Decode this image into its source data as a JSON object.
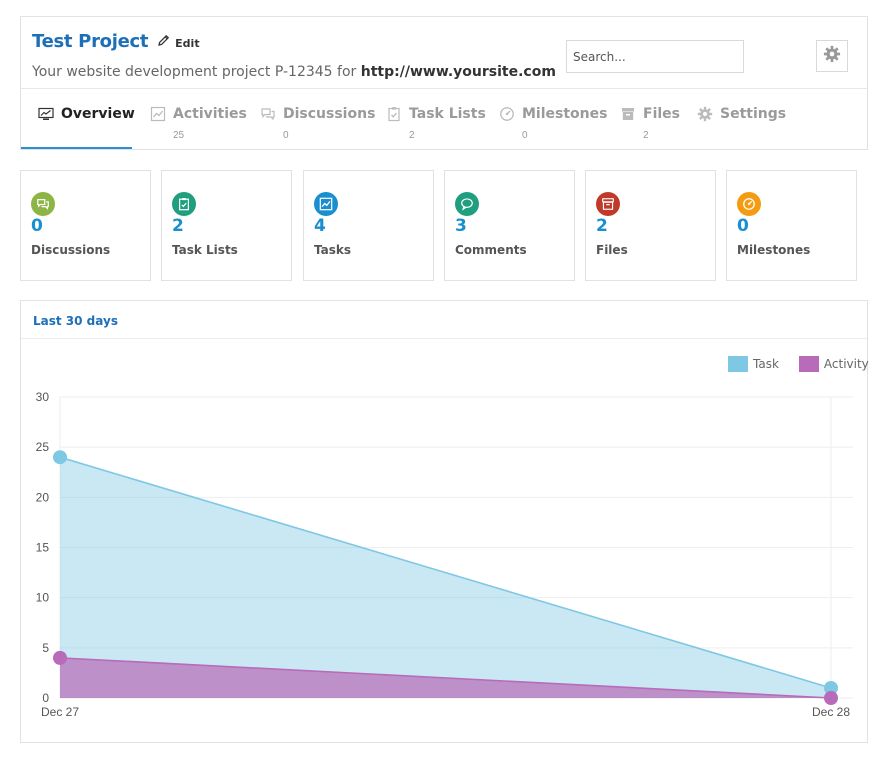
{
  "project": {
    "title": "Test Project",
    "edit_label": "Edit",
    "description": "Your website development project P-12345 for",
    "url": "http://www.yoursite.com"
  },
  "search": {
    "placeholder": "Search..."
  },
  "tabs": [
    {
      "label": "Overview",
      "count": "",
      "icon": "monitor-chart-icon"
    },
    {
      "label": "Activities",
      "count": "25",
      "icon": "activity-chart-icon"
    },
    {
      "label": "Discussions",
      "count": "0",
      "icon": "chat-bubbles-icon"
    },
    {
      "label": "Task Lists",
      "count": "2",
      "icon": "clipboard-check-icon"
    },
    {
      "label": "Milestones",
      "count": "0",
      "icon": "gauge-icon"
    },
    {
      "label": "Files",
      "count": "2",
      "icon": "archive-box-icon"
    },
    {
      "label": "Settings",
      "count": "",
      "icon": "gear-icon"
    }
  ],
  "stats": [
    {
      "value": "0",
      "label": "Discussions",
      "color": "#8cb545",
      "icon": "chat-bubbles-icon"
    },
    {
      "value": "2",
      "label": "Task Lists",
      "color": "#1f9e80",
      "icon": "clipboard-check-icon"
    },
    {
      "value": "4",
      "label": "Tasks",
      "color": "#1a8fd0",
      "icon": "line-chart-icon"
    },
    {
      "value": "3",
      "label": "Comments",
      "color": "#1f9e80",
      "icon": "comment-bubble-icon"
    },
    {
      "value": "2",
      "label": "Files",
      "color": "#c0392b",
      "icon": "archive-box-icon"
    },
    {
      "value": "0",
      "label": "Milestones",
      "color": "#f39c12",
      "icon": "gauge-icon"
    }
  ],
  "chart_panel": {
    "title": "Last 30 days"
  },
  "chart_data": {
    "type": "area",
    "x": [
      "Dec 27",
      "Dec 28"
    ],
    "series": [
      {
        "name": "Task",
        "values": [
          24,
          1
        ],
        "color": "#7ec8e3"
      },
      {
        "name": "Activity",
        "values": [
          4,
          0
        ],
        "color": "#b86bb8"
      }
    ],
    "ylim": [
      0,
      30
    ],
    "yticks": [
      0,
      5,
      10,
      15,
      20,
      25,
      30
    ],
    "grid": true,
    "legend": "top-right"
  }
}
